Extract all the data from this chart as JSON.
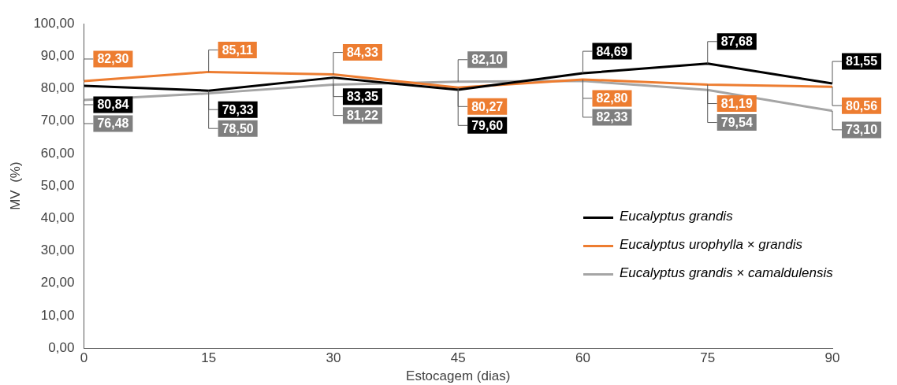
{
  "chart_data": {
    "type": "line",
    "xlabel": "Estocagem (dias)",
    "ylabel": "MV  (%)",
    "x": [
      0,
      15,
      30,
      45,
      60,
      75,
      90
    ],
    "xlim": [
      0,
      90
    ],
    "xticks": [
      0,
      15,
      30,
      45,
      60,
      75,
      90
    ],
    "ylim": [
      0,
      100
    ],
    "yticks": [
      {
        "value": 0,
        "label": "0,00"
      },
      {
        "value": 10,
        "label": "10,00"
      },
      {
        "value": 20,
        "label": "20,00"
      },
      {
        "value": 30,
        "label": "30,00"
      },
      {
        "value": 40,
        "label": "40,00"
      },
      {
        "value": 50,
        "label": "50,00"
      },
      {
        "value": 60,
        "label": "60,00"
      },
      {
        "value": 70,
        "label": "70,00"
      },
      {
        "value": 80,
        "label": "80,00"
      },
      {
        "value": 90,
        "label": "90,00"
      },
      {
        "value": 100,
        "label": "100,00"
      }
    ],
    "grid": false,
    "legend": "right",
    "marker": "none",
    "line_style": "solid",
    "series": [
      {
        "name": "Eucalyptus grandis",
        "color": "#000000",
        "values": [
          80.84,
          79.33,
          83.35,
          79.6,
          84.69,
          87.68,
          81.55
        ],
        "value_labels": [
          "80,84",
          "79,33",
          "83,35",
          "79,60",
          "84,69",
          "87,68",
          "81,55"
        ]
      },
      {
        "name": "Eucalyptus urophylla × grandis",
        "color": "#ed7d31",
        "values": [
          82.3,
          85.11,
          84.33,
          80.27,
          82.8,
          81.19,
          80.56
        ],
        "value_labels": [
          "82,30",
          "85,11",
          "84,33",
          "80,27",
          "82,80",
          "81,19",
          "80,56"
        ]
      },
      {
        "name": "Eucalyptus grandis × camaldulensis",
        "color": "#a5a5a5",
        "values": [
          76.48,
          78.5,
          81.22,
          82.1,
          82.33,
          79.54,
          73.1
        ],
        "value_labels": [
          "76,48",
          "78,50",
          "81,22",
          "82,10",
          "82,33",
          "79,54",
          "73,10"
        ]
      }
    ]
  }
}
